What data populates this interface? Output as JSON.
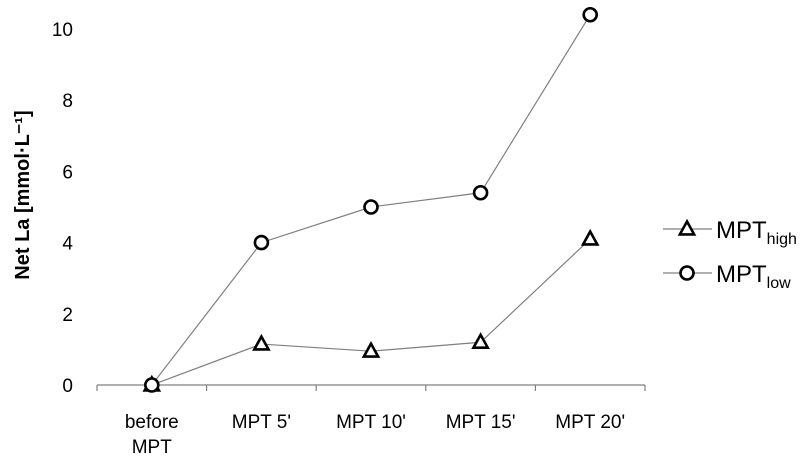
{
  "chart_data": {
    "type": "line",
    "title": "",
    "xlabel": "",
    "ylabel": "Net La [mmol·L⁻¹]",
    "categories": [
      [
        "before",
        "MPT"
      ],
      [
        "MPT 5'"
      ],
      [
        "MPT 10'"
      ],
      [
        "MPT 15'"
      ],
      [
        "MPT 20'"
      ]
    ],
    "yticks": [
      "0",
      "2",
      "4",
      "6",
      "8",
      "10"
    ],
    "ylim": [
      0,
      10.5
    ],
    "grid": false,
    "legend_position": "right",
    "series": [
      {
        "name_main": "MPT",
        "name_sub": "high",
        "marker": "triangle",
        "values": [
          0,
          1.15,
          0.95,
          1.2,
          4.1
        ]
      },
      {
        "name_main": "MPT",
        "name_sub": "low",
        "marker": "circle",
        "values": [
          0,
          4.0,
          5.0,
          5.4,
          10.4
        ]
      }
    ],
    "colors": {
      "line": "#7f7f7f",
      "marker_stroke": "#000000",
      "axis": "#808080"
    }
  }
}
